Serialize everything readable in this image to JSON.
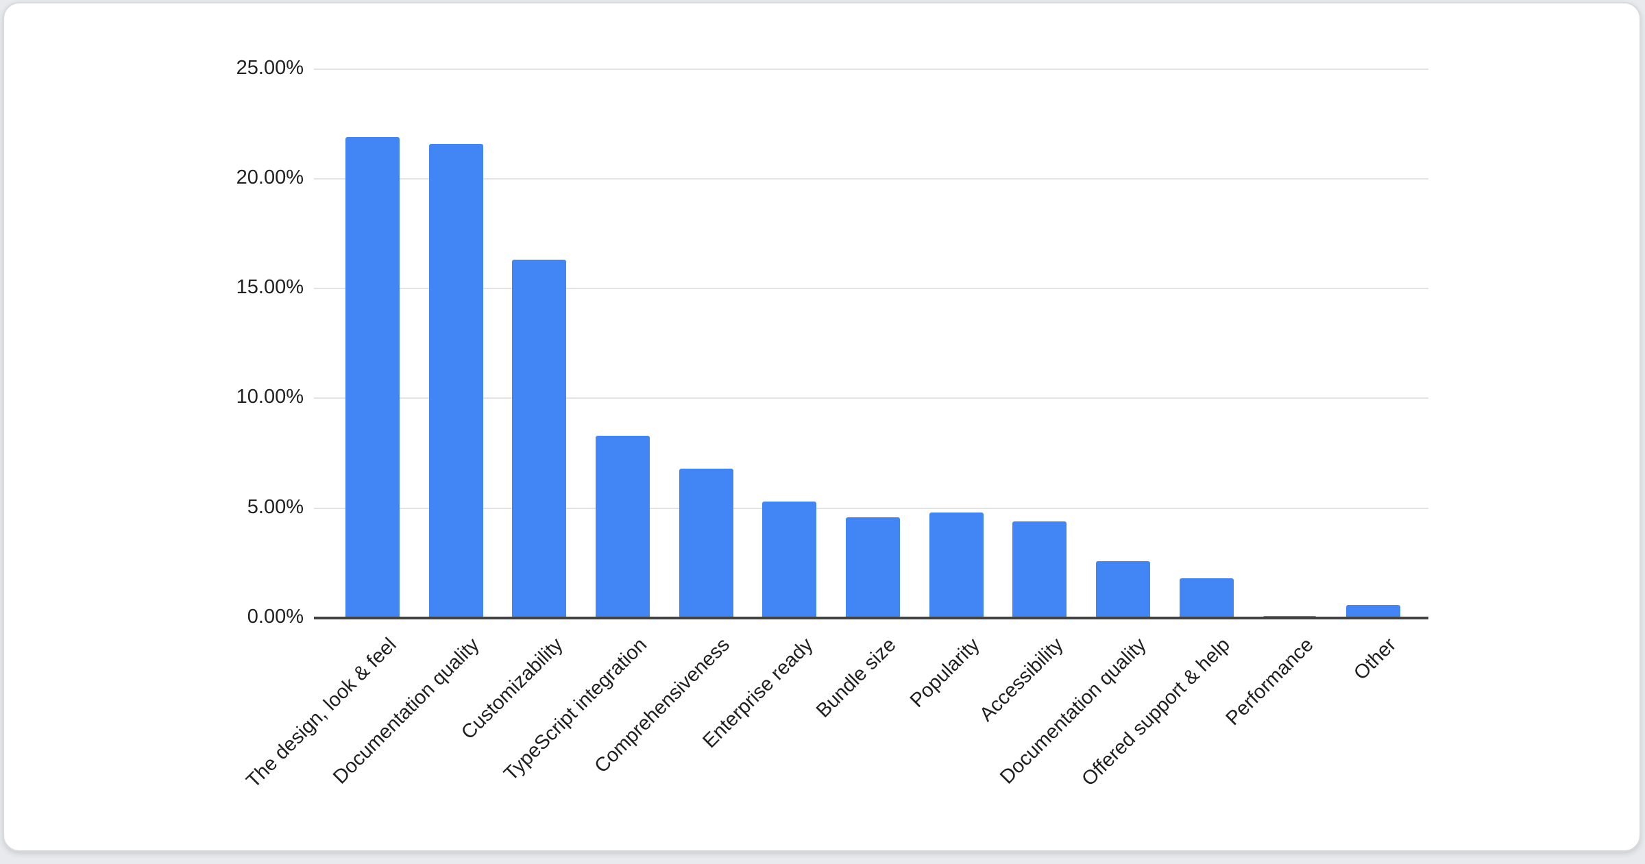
{
  "page": {
    "background_color": "#e8eaed"
  },
  "card": {
    "background_color": "#ffffff"
  },
  "chart_data": {
    "type": "bar",
    "title": "",
    "categories": [
      "The design, look & feel",
      "Documentation quality",
      "Customizability",
      "TypeScript integration",
      "Comprehensiveness",
      "Enterprise ready",
      "Bundle size",
      "Popularity",
      "Accessibility",
      "Documentation quality",
      "Offered support & help",
      "Performance",
      "Other"
    ],
    "values": [
      21.9,
      21.6,
      16.3,
      8.3,
      6.8,
      5.3,
      4.6,
      4.8,
      4.4,
      2.6,
      1.8,
      0.1,
      0.6
    ],
    "value_unit": "%",
    "series_color": "#4285f4",
    "xlabel": "",
    "ylabel": "",
    "y_axis": {
      "range": [
        0,
        25
      ],
      "grid": true,
      "ticks": [
        {
          "label": "25.00%",
          "value": 25
        },
        {
          "label": "20.00%",
          "value": 20
        },
        {
          "label": "15.00%",
          "value": 15
        },
        {
          "label": "10.00%",
          "value": 10
        },
        {
          "label": "5.00%",
          "value": 5
        },
        {
          "label": "0.00%",
          "value": 0
        }
      ]
    },
    "x_axis": {
      "label_rotation_deg": -45
    },
    "legend": "none"
  }
}
